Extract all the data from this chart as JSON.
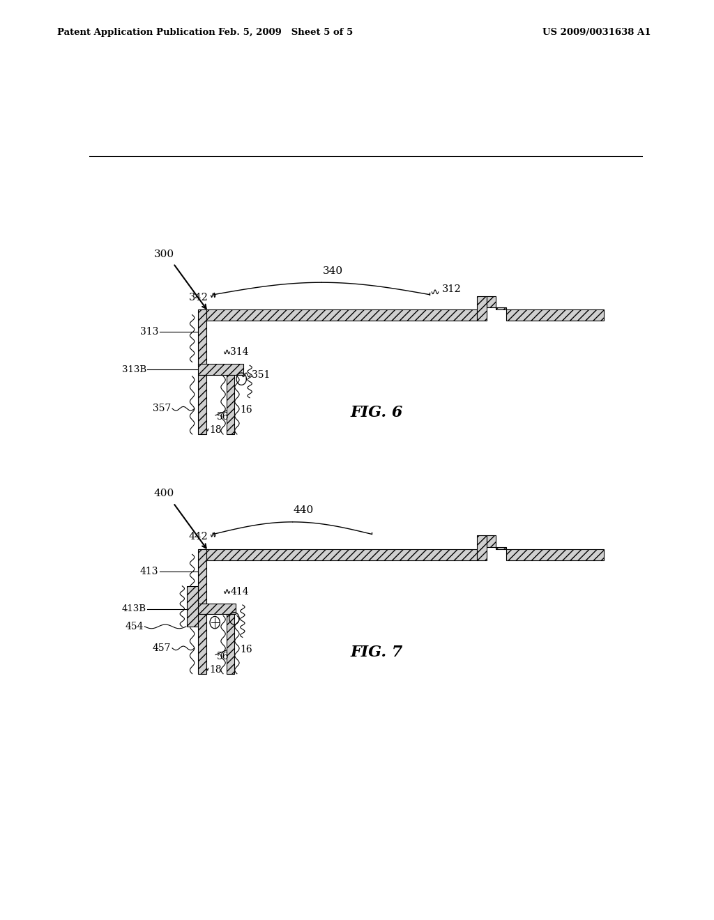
{
  "bg_color": "#ffffff",
  "line_color": "#000000",
  "header_left": "Patent Application Publication",
  "header_mid": "Feb. 5, 2009   Sheet 5 of 5",
  "header_right": "US 2009/0031638 A1",
  "fig6_label": "FIG. 6",
  "fig7_label": "FIG. 7"
}
